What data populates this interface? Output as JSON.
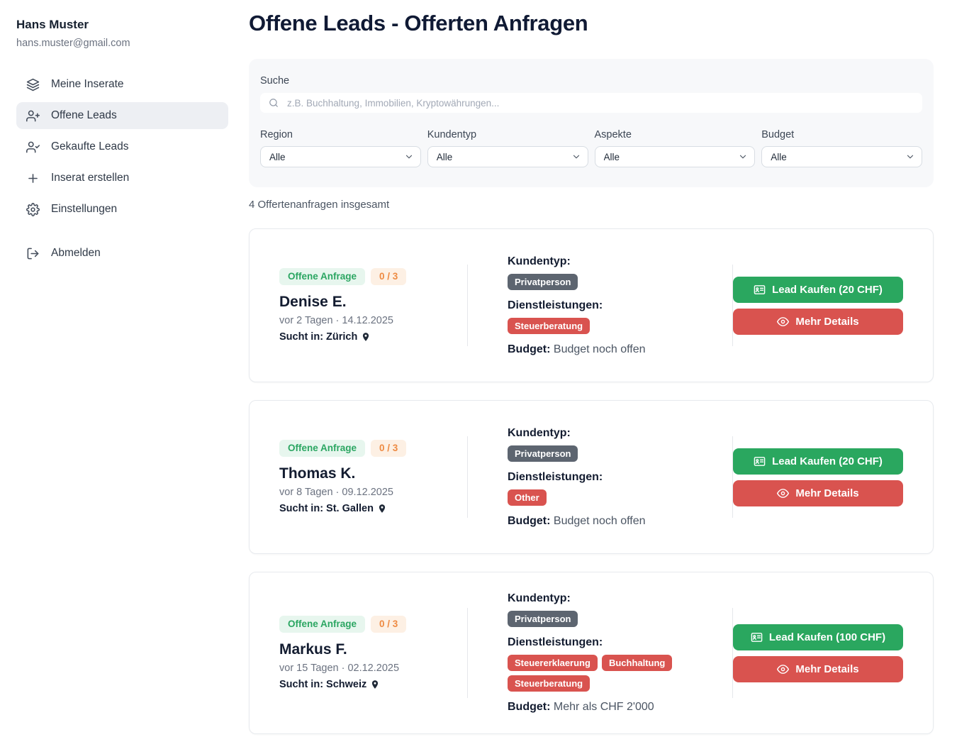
{
  "user": {
    "name": "Hans Muster",
    "email": "hans.muster@gmail.com"
  },
  "sidebar": {
    "items": [
      {
        "label": "Meine Inserate",
        "icon": "layers-icon"
      },
      {
        "label": "Offene Leads",
        "icon": "user-plus-icon",
        "active": true
      },
      {
        "label": "Gekaufte Leads",
        "icon": "user-check-icon"
      },
      {
        "label": "Inserat erstellen",
        "icon": "plus-icon"
      },
      {
        "label": "Einstellungen",
        "icon": "gear-icon"
      }
    ],
    "logout_label": "Abmelden"
  },
  "header": {
    "title": "Offene Leads - Offerten Anfragen"
  },
  "filters": {
    "search_label": "Suche",
    "search_placeholder": "z.B. Buchhaltung, Immobilien, Kryptowährungen...",
    "selects": [
      {
        "label": "Region",
        "value": "Alle"
      },
      {
        "label": "Kundentyp",
        "value": "Alle"
      },
      {
        "label": "Aspekte",
        "value": "Alle"
      },
      {
        "label": "Budget",
        "value": "Alle"
      }
    ]
  },
  "results": {
    "summary": "4 Offertenanfragen insgesamt"
  },
  "card_labels": {
    "kundentyp": "Kundentyp:",
    "dienstleistungen": "Dienstleistungen:",
    "budget": "Budget:"
  },
  "cards": [
    {
      "status": "Offene Anfrage",
      "quota": "0 / 3",
      "name": "Denise E.",
      "meta": "vor 2 Tagen · 14.12.2025",
      "location_line": "Sucht in: Zürich",
      "kundentyp": "Privatperson",
      "services": [
        "Steuerberatung"
      ],
      "budget": "Budget noch offen",
      "buy_label": "Lead Kaufen (20 CHF)",
      "details_label": "Mehr Details"
    },
    {
      "status": "Offene Anfrage",
      "quota": "0 / 3",
      "name": "Thomas K.",
      "meta": "vor 8 Tagen · 09.12.2025",
      "location_line": "Sucht in: St. Gallen",
      "kundentyp": "Privatperson",
      "services": [
        "Other"
      ],
      "budget": "Budget noch offen",
      "buy_label": "Lead Kaufen (20 CHF)",
      "details_label": "Mehr Details"
    },
    {
      "status": "Offene Anfrage",
      "quota": "0 / 3",
      "name": "Markus F.",
      "meta": "vor 15 Tagen · 02.12.2025",
      "location_line": "Sucht in: Schweiz",
      "kundentyp": "Privatperson",
      "services": [
        "Steuererklaerung",
        "Buchhaltung",
        "Steuerberatung"
      ],
      "budget": "Mehr als CHF 2'000",
      "buy_label": "Lead Kaufen (100 CHF)",
      "details_label": "Mehr Details"
    }
  ],
  "colors": {
    "accent_green": "#2aa75f",
    "accent_red": "#d9534f",
    "badge_slate_bg": "#5d6570",
    "status_badge_bg": "#e7f6ee",
    "status_badge_text": "#2ba662",
    "quota_badge_bg": "#fdf0e4",
    "quota_badge_text": "#ee8a42",
    "active_nav_bg": "#edeff3",
    "panel_bg": "#f7f8fa",
    "heading_ink": "#101a34"
  }
}
